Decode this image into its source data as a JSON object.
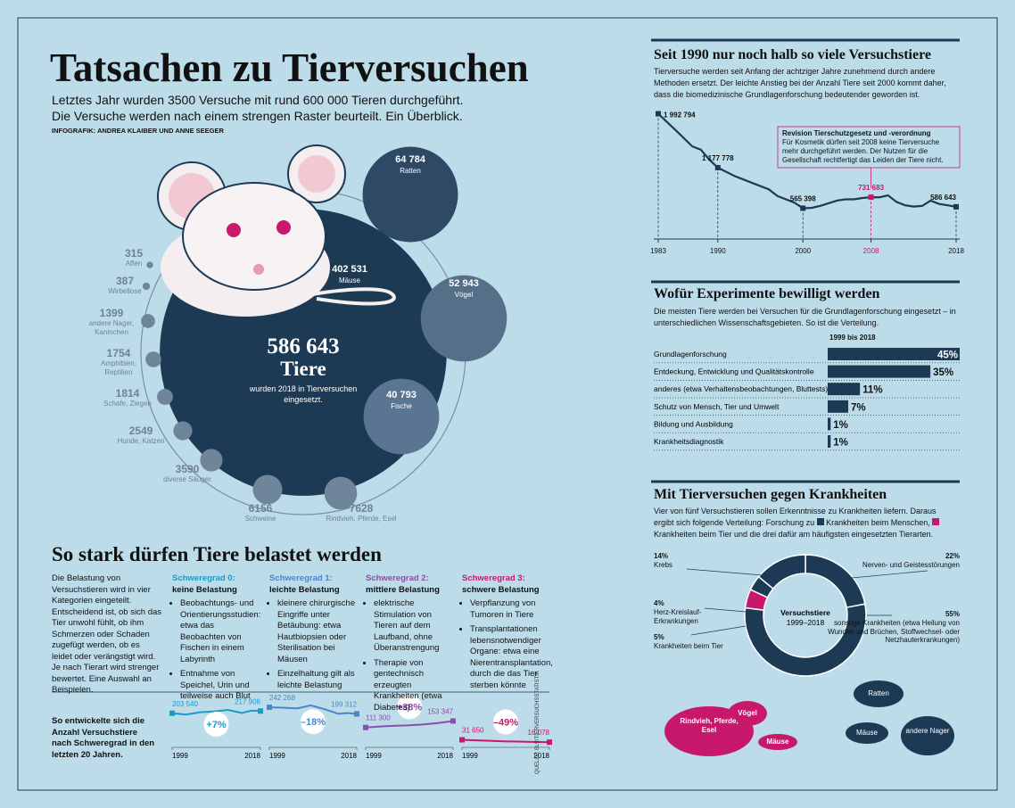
{
  "header": {
    "title": "Tatsachen zu Tierversuchen",
    "subtitle": "Letztes Jahr wurden 3500 Versuche mit rund 600 000 Tieren durchgeführt. Die Versuche werden nach einem strengen Raster beurteilt. Ein Überblick.",
    "credit": "INFOGRAFIK: ANDREA KLAIBER UND ANNE SEEGER"
  },
  "belastung": {
    "title": "So stark dürfen Tiere belastet werden",
    "intro": "Die Belastung von Versuchstieren wird in vier Kategorien eingeteilt. Entscheidend ist, ob sich das Tier unwohl fühlt, ob ihm Schmerzen oder Schaden zugefügt werden, ob es leidet oder verängstigt wird. Je nach Tierart wird strenger bewertet. Eine Auswahl an Beispielen.",
    "levels": [
      {
        "grade": "Schweregrad 0:",
        "name": "keine Belastung",
        "color": "#1a9bc6",
        "items": [
          "Beobachtungs- und Orientierungsstudien: etwa das Beobachten von Fischen in einem Labyrinth",
          "Entnahme von Speichel, Urin und teilweise auch Blut"
        ]
      },
      {
        "grade": "Schweregrad 1:",
        "name": "leichte Belastung",
        "color": "#4a86c8",
        "items": [
          "kleinere chirurgische Eingriffe unter Betäubung: etwa Hautbiopsien oder Sterilisation bei Mäusen",
          "Einzelhaltung gilt als leichte Belastung"
        ]
      },
      {
        "grade": "Schweregrad 2:",
        "name": "mittlere Belastung",
        "color": "#8a4fa6",
        "items": [
          "elektrische Stimulation von Tieren auf dem Laufband, ohne Überanstrengung",
          "Therapie von gentechnisch erzeugten Krankheiten (etwa Diabetes)"
        ]
      },
      {
        "grade": "Schweregrad 3:",
        "name": "schwere Belastung",
        "color": "#c8186b",
        "items": [
          "Verpflanzung von Tumoren in Tiere",
          "Transplantationen lebensnotwendiger Organe: etwa eine Nierentransplantation, durch die das Tier sterben könnte"
        ]
      }
    ],
    "trend_caption": "So entwickelte sich die Anzahl Versuchstiere nach Schweregrad in den letzten 20 Jahren.",
    "source": "QUELLE: BLV/TIERVERSUCHSSTATISTIK"
  },
  "chart_data": [
    {
      "type": "bubble",
      "total": 586643,
      "total_label": "586 643",
      "total_unit": "Tiere",
      "caption": "wurden 2018 in Tierversuchen eingesetzt.",
      "categories": [
        "Mäuse",
        "Ratten",
        "Vögel",
        "Fische",
        "Rindvieh, Pferde, Esel",
        "Schweine",
        "diverse Säuger",
        "Hunde, Katzen",
        "Schafe, Ziegen",
        "Amphibien, Reptilien",
        "andere Nager, Kaninchen",
        "Wirbellose",
        "Affen"
      ],
      "values": [
        402531,
        64784,
        52943,
        40793,
        7628,
        6156,
        3590,
        2549,
        1814,
        1754,
        1399,
        387,
        315
      ],
      "value_labels": [
        "402 531",
        "64 784",
        "52 943",
        "40 793",
        "7628",
        "6156",
        "3590",
        "2549",
        "1814",
        "1754",
        "1399",
        "387",
        "315"
      ],
      "color": "#1d3a55",
      "colors": [
        "#1d3a55",
        "#2d4963",
        "#566f88",
        "#5a7591",
        "#6f8599",
        "#6f8599",
        "#6f8599",
        "#6f8599",
        "#6f8599",
        "#6f8599",
        "#6f8599",
        "#6f8599",
        "#6f8599"
      ]
    },
    {
      "type": "line",
      "title": "Seit 1990 nur noch halb so viele Versuchstiere",
      "text": "Tierversuche werden seit Anfang der achtziger Jahre zunehmend durch andere Methoden ersetzt. Der leichte Anstieg bei der Anzahl Tiere seit 2000 kommt daher, dass die biomedizinische Grundlagenforschung bedeutender geworden ist.",
      "x": [
        1983,
        1985,
        1987,
        1988,
        1989,
        1990,
        1992,
        1994,
        1996,
        1997,
        1999,
        2000,
        2001,
        2002,
        2003,
        2004,
        2005,
        2006,
        2007,
        2008,
        2009,
        2010,
        2011,
        2012,
        2013,
        2014,
        2015,
        2016,
        2017,
        2018
      ],
      "values": [
        1992794,
        1750000,
        1500000,
        1450000,
        1300000,
        1177778,
        1050000,
        950000,
        850000,
        750000,
        650000,
        565398,
        570000,
        600000,
        640000,
        680000,
        700000,
        700000,
        720000,
        731683,
        730000,
        760000,
        660000,
        610000,
        590000,
        600000,
        680000,
        630000,
        610000,
        586643
      ],
      "value_labels": [
        "1 992 794",
        null,
        null,
        null,
        null,
        "1 177 778",
        null,
        null,
        null,
        null,
        null,
        "565 398",
        null,
        null,
        null,
        null,
        null,
        null,
        null,
        "731 683",
        null,
        null,
        null,
        null,
        null,
        null,
        null,
        null,
        null,
        "586 643"
      ],
      "color": "#1d3a55",
      "xlim": [
        1983,
        2018
      ],
      "ylim": [
        100000,
        2000000
      ],
      "xticks": [
        1983,
        1990,
        2000,
        2008,
        2018
      ],
      "highlight": {
        "x": 2008,
        "color": "#c8186b"
      },
      "annotation": {
        "title": "Revision Tierschutzgesetz und -verordnung",
        "text": "Für Kosmetik dürfen seit 2008 keine Tierversuche mehr durchgeführt werden. Der Nutzen für die Gesellschaft rechtfertigt das Leiden der Tiere nicht."
      }
    },
    {
      "type": "bar",
      "title": "Wofür Experimente bewilligt werden",
      "text": "Die meisten Tiere werden bei Versuchen für die Grundlagenforschung eingesetzt – in unterschiedlichen Wissenschaftsgebieten. So ist die Verteilung.",
      "period_label": "1999 bis 2018",
      "categories": [
        "Grundlagenforschung",
        "Entdeckung, Entwicklung und Qualitätskontrolle",
        "anderes (etwa Verhaltensbeobachtungen, Bluttests)",
        "Schutz von Mensch, Tier und Umwelt",
        "Bildung und Ausbildung",
        "Krankheitsdiagnostik"
      ],
      "values": [
        45,
        35,
        11,
        7,
        1,
        1
      ],
      "value_labels": [
        "45%",
        "35%",
        "11%",
        "7%",
        "1%",
        "1%"
      ],
      "xlim": [
        0,
        45
      ],
      "color": "#1d3a55"
    },
    {
      "type": "donut",
      "title": "Mit Tierversuchen gegen Krankheiten",
      "text": [
        "Vier von fünf Versuchstieren sollen Erkenntnisse zu Krankheiten liefern. Daraus ergibt sich folgende Verteilung: Forschung zu",
        "Krankheiten beim Menschen,",
        "Krankheiten beim Tier und die drei dafür am häufigsten eingesetzten Tierarten."
      ],
      "center_label": [
        "Versuchstiere",
        "1999–2018"
      ],
      "categories": [
        "Nerven- und Geistesstörungen",
        "sonstige Krankheiten (etwa Heilung von Wunden und Brüchen, Stoffwechsel- oder Netzhauterkrankungen)",
        "Krankheiten beim Tier",
        "Herz-Kreislauf-Erkrankungen",
        "Krebs"
      ],
      "values": [
        22,
        55,
        5,
        4,
        14
      ],
      "value_labels": [
        "22%",
        "55%",
        "5%",
        "4%",
        "14%"
      ],
      "colors": [
        "#1d3a55",
        "#1d3a55",
        "#c8186b",
        "#1d3a55",
        "#1d3a55"
      ],
      "animals_tier": [
        "Rindvieh, Pferde, Esel",
        "Vögel",
        "Mäuse"
      ],
      "animals_mensch": [
        "Ratten",
        "Mäuse",
        "andere Nager"
      ]
    },
    {
      "type": "sparkline",
      "x": [
        1999,
        2002,
        2005,
        2008,
        2011,
        2014,
        2016,
        2018
      ],
      "values": [
        203540,
        195000,
        210000,
        215000,
        225000,
        205000,
        220000,
        217906
      ],
      "value_labels": [
        "203 540",
        null,
        null,
        null,
        null,
        null,
        null,
        "217 906"
      ],
      "change_label": "+7%",
      "color": "#1a9bc6",
      "xlim": [
        1999,
        2018
      ],
      "ylim": [
        0,
        260000
      ],
      "xticks": [
        1999,
        2018
      ]
    },
    {
      "type": "sparkline",
      "x": [
        1999,
        2002,
        2005,
        2008,
        2011,
        2014,
        2016,
        2018
      ],
      "values": [
        242268,
        240000,
        235000,
        255000,
        230000,
        200000,
        205000,
        199312
      ],
      "value_labels": [
        "242 268",
        null,
        null,
        null,
        null,
        null,
        null,
        "199 312"
      ],
      "change_label": "–18%",
      "color": "#4a86c8",
      "xlim": [
        1999,
        2018
      ],
      "ylim": [
        0,
        260000
      ],
      "xticks": [
        1999,
        2018
      ]
    },
    {
      "type": "sparkline",
      "x": [
        1999,
        2002,
        2005,
        2008,
        2011,
        2014,
        2016,
        2018
      ],
      "values": [
        111300,
        118000,
        122000,
        125000,
        130000,
        138000,
        145000,
        153347
      ],
      "value_labels": [
        "111 300",
        null,
        null,
        null,
        null,
        null,
        null,
        "153 347"
      ],
      "change_label": "+38%",
      "color": "#8a4fa6",
      "xlim": [
        1999,
        2018
      ],
      "ylim": [
        0,
        260000
      ],
      "xticks": [
        1999,
        2018
      ]
    },
    {
      "type": "sparkline",
      "x": [
        1999,
        2002,
        2005,
        2008,
        2011,
        2014,
        2016,
        2018
      ],
      "values": [
        31650,
        28000,
        25000,
        22000,
        20000,
        18000,
        17000,
        16078
      ],
      "value_labels": [
        "31 650",
        null,
        null,
        null,
        null,
        null,
        null,
        "16 078"
      ],
      "change_label": "–49%",
      "color": "#c8186b",
      "xlim": [
        1999,
        2018
      ],
      "ylim": [
        0,
        260000
      ],
      "xticks": [
        1999,
        2018
      ]
    }
  ]
}
